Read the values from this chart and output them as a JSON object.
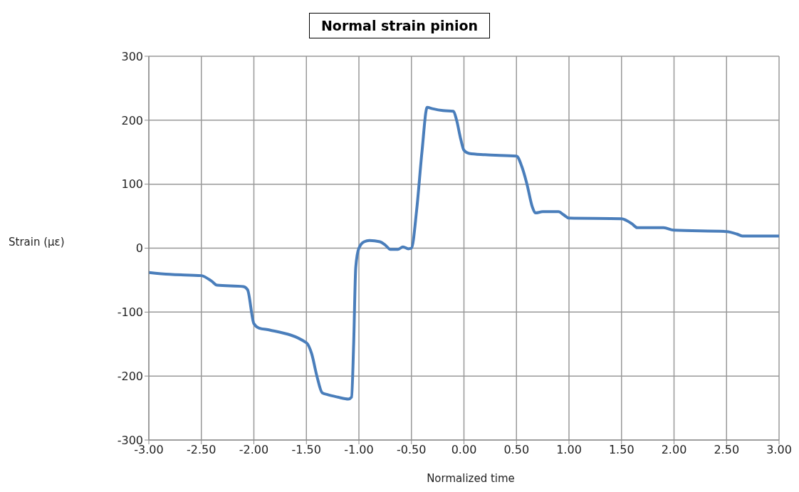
{
  "chart_data": {
    "type": "line",
    "title": "Normal strain pinion",
    "xlabel": "Normalized time",
    "ylabel": "Strain (με)",
    "x": [
      -3.0,
      -2.8,
      -2.5,
      -2.4,
      -2.35,
      -2.1,
      -2.06,
      -2.0,
      -1.95,
      -1.85,
      -1.5,
      -1.45,
      -1.4,
      -1.35,
      -1.3,
      -1.2,
      -1.1,
      -1.07,
      -1.05,
      -1.03,
      -1.0,
      -0.95,
      -0.9,
      -0.8,
      -0.75,
      -0.7,
      -0.63,
      -0.58,
      -0.53,
      -0.5,
      -0.45,
      -0.4,
      -0.35,
      -0.3,
      -0.2,
      -0.1,
      -0.07,
      -0.03,
      0.0,
      0.05,
      0.2,
      0.5,
      0.55,
      0.6,
      0.65,
      0.68,
      0.75,
      0.9,
      0.95,
      1.0,
      1.5,
      1.6,
      1.65,
      1.9,
      2.0,
      2.5,
      2.6,
      2.65,
      3.0
    ],
    "series": [
      {
        "color": "#4a7ebb",
        "values": [
          -38,
          -41,
          -43,
          -52,
          -58,
          -60,
          -65,
          -118,
          -125,
          -128,
          -148,
          -165,
          -200,
          -226,
          -229,
          -233,
          -236,
          -233,
          -150,
          -30,
          0,
          10,
          12,
          10,
          5,
          -2,
          -2,
          2,
          -1,
          0,
          60,
          150,
          220,
          218,
          215,
          214,
          200,
          170,
          153,
          148,
          146,
          144,
          128,
          100,
          65,
          55,
          57,
          57,
          52,
          47,
          46,
          38,
          32,
          32,
          28,
          26,
          22,
          19,
          19
        ]
      }
    ],
    "xlim": [
      -3,
      3
    ],
    "xticks": [
      {
        "value": -3,
        "label": "-3.00"
      },
      {
        "value": -2.5,
        "label": "-2.50"
      },
      {
        "value": -2,
        "label": "-2.00"
      },
      {
        "value": -1.5,
        "label": "-1.50"
      },
      {
        "value": -1,
        "label": "-1.00"
      },
      {
        "value": -0.5,
        "label": "-0.50"
      },
      {
        "value": 0,
        "label": "0.00"
      },
      {
        "value": 0.5,
        "label": "0.50"
      },
      {
        "value": 1,
        "label": "1.00"
      },
      {
        "value": 1.5,
        "label": "1.50"
      },
      {
        "value": 2,
        "label": "2.00"
      },
      {
        "value": 2.5,
        "label": "2.50"
      },
      {
        "value": 3,
        "label": "3.00"
      }
    ],
    "ylim": [
      -300,
      300
    ],
    "yticks": [
      -300,
      -200,
      -100,
      0,
      100,
      200,
      300
    ],
    "grid": true,
    "legend": false,
    "marker": "none",
    "line_style": "solid"
  }
}
